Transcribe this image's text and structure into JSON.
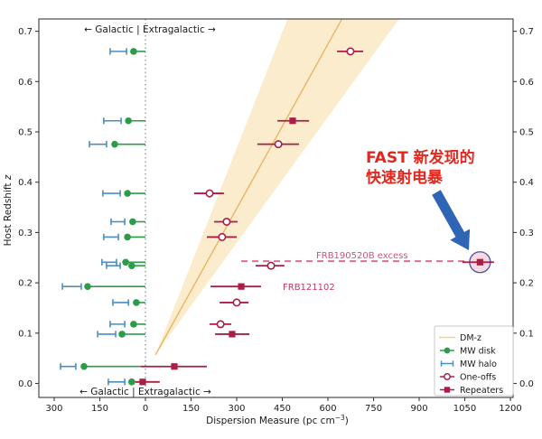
{
  "annotations": {
    "region_top": "←  Galactic | Extragalactic  →",
    "region_bottom": "←  Galactic | Extragalactic  →",
    "fast_line1": "FAST 新发现的",
    "fast_line2": "快速射电暴",
    "frb190520b_label": "FRB190520B excess",
    "frb121102_label": "FRB121102"
  },
  "colors": {
    "band_fill": "#fcecce",
    "dmz_line": "#e9b25b",
    "dmz_legend_line": "#f3cf92",
    "mw_disk_green": "#2d9c4a",
    "mw_halo_blue": "#4b8ec1",
    "frb_crimson": "#a81e45",
    "excess_dash_pink": "#e7699c",
    "label_pink": "#d0507e",
    "label_crimson": "#bf3960",
    "highlight_circle_fill": "#f6d9e2",
    "highlight_circle_stroke": "#49549e",
    "arrow_blue": "#2f65b5",
    "zero_line_grey": "#8c8c8c",
    "frame": "#3a3a3a",
    "text": "#1a1a1a",
    "annotation_red": "#e0281e"
  },
  "chart_data": {
    "type": "scatter",
    "title": "",
    "xlabel_parts": {
      "main": "Dispersion Measure (pc cm",
      "sup": "−3",
      "close": ")"
    },
    "ylabel_parts": {
      "main": "Host Redshift ",
      "italic": "z"
    },
    "xlim": [
      -350,
      1210
    ],
    "ylim": [
      -0.028,
      0.7245
    ],
    "grid": false,
    "legend_position": "lower right",
    "x_ticks": [
      {
        "value": -300,
        "label": "300"
      },
      {
        "value": -150,
        "label": "150"
      },
      {
        "value": 0,
        "label": "0"
      },
      {
        "value": 150,
        "label": "150"
      },
      {
        "value": 300,
        "label": "300"
      },
      {
        "value": 450,
        "label": "450"
      },
      {
        "value": 600,
        "label": "600"
      },
      {
        "value": 750,
        "label": "750"
      },
      {
        "value": 900,
        "label": "900"
      },
      {
        "value": 1050,
        "label": "1050"
      },
      {
        "value": 1200,
        "label": "1200"
      }
    ],
    "y_ticks": [
      {
        "value": 0.0,
        "label": "0.0"
      },
      {
        "value": 0.1,
        "label": "0.1"
      },
      {
        "value": 0.2,
        "label": "0.2"
      },
      {
        "value": 0.3,
        "label": "0.3"
      },
      {
        "value": 0.4,
        "label": "0.4"
      },
      {
        "value": 0.5,
        "label": "0.5"
      },
      {
        "value": 0.6,
        "label": "0.6"
      },
      {
        "value": 0.7,
        "label": "0.7"
      }
    ],
    "legend": [
      {
        "key": "dm-z",
        "label": "DM-z"
      },
      {
        "key": "mw-disk",
        "label": "MW disk"
      },
      {
        "key": "mw-halo",
        "label": "MW halo"
      },
      {
        "key": "one-offs",
        "label": "One-offs"
      },
      {
        "key": "repeaters",
        "label": "Repeaters"
      }
    ],
    "dm_z_relation": {
      "line": [
        [
          33,
          0.057
        ],
        [
          646,
          0.7245
        ]
      ],
      "band": [
        [
          33,
          0.057
        ],
        [
          467,
          0.7245
        ],
        [
          834,
          0.7245
        ]
      ]
    },
    "excess_line": {
      "z": 0.243,
      "dm_from": 315,
      "dm_to": 1063
    },
    "frb_rows": [
      {
        "z": 0.66,
        "disk_dm": -39,
        "halo_dm": [
          -116,
          -62
        ],
        "type": "one-off",
        "dm": 674,
        "dm_err": [
          630,
          716
        ]
      },
      {
        "z": 0.522,
        "disk_dm": -56,
        "halo_dm": [
          -137,
          -80
        ],
        "type": "repeater",
        "dm": 484,
        "dm_err": [
          434,
          538
        ]
      },
      {
        "z": 0.4755,
        "disk_dm": -101,
        "halo_dm": [
          -184,
          -128
        ],
        "type": "one-off",
        "dm": 437,
        "dm_err": [
          368,
          505
        ]
      },
      {
        "z": 0.3778,
        "disk_dm": -59,
        "halo_dm": [
          -140,
          -83
        ],
        "type": "one-off",
        "dm": 211,
        "dm_err": [
          160,
          258
        ]
      },
      {
        "z": 0.3214,
        "disk_dm": -42,
        "halo_dm": [
          -113,
          -68
        ],
        "type": "one-off",
        "dm": 267,
        "dm_err": [
          226,
          303
        ]
      },
      {
        "z": 0.291,
        "disk_dm": -59,
        "halo_dm": [
          -137,
          -89
        ],
        "type": "one-off",
        "dm": 252,
        "dm_err": [
          202,
          300
        ]
      },
      {
        "z": 0.241,
        "disk_dm": -65,
        "halo_dm": [
          -143,
          -95
        ],
        "type": "repeater",
        "dm": 1100,
        "dm_err": [
          1042,
          1146
        ],
        "highlight": true
      },
      {
        "z": 0.234,
        "disk_dm": -45,
        "halo_dm": [
          -128,
          -83
        ],
        "type": "one-off",
        "dm": 413,
        "dm_err": [
          362,
          457
        ]
      },
      {
        "z": 0.1927,
        "disk_dm": -190,
        "halo_dm": [
          -273,
          -211
        ],
        "type": "repeater",
        "dm": 315,
        "dm_err": [
          214,
          380
        ],
        "labelled": "frb121102"
      },
      {
        "z": 0.1608,
        "disk_dm": -30,
        "halo_dm": [
          -107,
          -56
        ],
        "type": "one-off",
        "dm": 300,
        "dm_err": [
          244,
          339
        ]
      },
      {
        "z": 0.1178,
        "disk_dm": -39,
        "halo_dm": [
          -116,
          -68
        ],
        "type": "one-off",
        "dm": 247,
        "dm_err": [
          211,
          282
        ]
      },
      {
        "z": 0.098,
        "disk_dm": -77,
        "halo_dm": [
          -157,
          -98
        ],
        "type": "repeater",
        "dm": 285,
        "dm_err": [
          229,
          342
        ]
      },
      {
        "z": 0.0337,
        "disk_dm": -202,
        "halo_dm": [
          -279,
          -229
        ],
        "type": "repeater",
        "dm": 95,
        "dm_err": [
          -15,
          202
        ]
      },
      {
        "z": 0.003,
        "disk_dm": -45,
        "halo_dm": [
          -122,
          -68
        ],
        "type": "repeater",
        "dm": -9,
        "dm_err": [
          -33,
          47
        ]
      }
    ]
  }
}
